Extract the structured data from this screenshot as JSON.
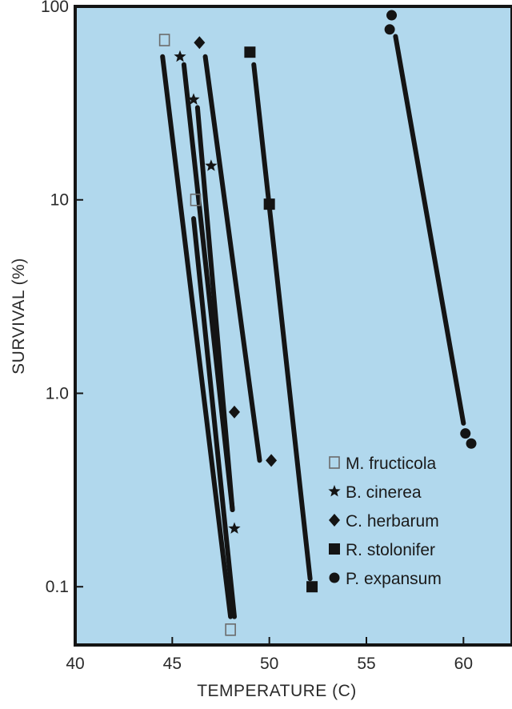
{
  "chart_data": {
    "type": "scatter",
    "xlabel": "TEMPERATURE (C)",
    "ylabel": "SURVIVAL (%)",
    "xlim": [
      40,
      62.5
    ],
    "ylim": [
      0.05,
      100
    ],
    "y_scale": "log",
    "x_ticks": [
      40,
      45,
      50,
      55,
      60
    ],
    "y_ticks": [
      {
        "value": 100,
        "label": "100"
      },
      {
        "value": 10,
        "label": "10"
      },
      {
        "value": 1,
        "label": "1.0"
      },
      {
        "value": 0.1,
        "label": "0.1"
      }
    ],
    "legend_position": "bottom-right",
    "series": [
      {
        "name": "M. fructicola",
        "marker": "open-square",
        "points": [
          [
            44.6,
            67
          ],
          [
            46.2,
            10
          ],
          [
            48,
            0.06
          ]
        ],
        "fit_lines": [
          [
            [
              44.5,
              55
            ],
            [
              48,
              0.07
            ]
          ],
          [
            [
              46.1,
              8
            ],
            [
              48.2,
              0.07
            ]
          ]
        ]
      },
      {
        "name": "B. cinerea",
        "marker": "star",
        "points": [
          [
            45.4,
            55
          ],
          [
            46.1,
            33
          ],
          [
            47,
            15
          ],
          [
            48.2,
            0.2
          ]
        ],
        "fit_lines": [
          [
            [
              45.6,
              50
            ],
            [
              48.1,
              0.25
            ]
          ],
          [
            [
              46.3,
              30
            ],
            [
              48.1,
              0.25
            ]
          ]
        ]
      },
      {
        "name": "C. herbarum",
        "marker": "diamond",
        "points": [
          [
            46.4,
            65
          ],
          [
            48.2,
            0.8
          ],
          [
            50.1,
            0.45
          ]
        ],
        "fit_lines": [
          [
            [
              46.7,
              55
            ],
            [
              49.5,
              0.45
            ]
          ]
        ]
      },
      {
        "name": "R. stolonifer",
        "marker": "filled-square",
        "points": [
          [
            49,
            58
          ],
          [
            50,
            9.5
          ],
          [
            52.2,
            0.1
          ]
        ],
        "fit_lines": [
          [
            [
              49.2,
              50
            ],
            [
              52.1,
              0.11
            ]
          ]
        ]
      },
      {
        "name": "P. expansum",
        "marker": "filled-circle",
        "points": [
          [
            56.3,
            90
          ],
          [
            56.2,
            76
          ],
          [
            60.1,
            0.62
          ],
          [
            60.4,
            0.55
          ]
        ],
        "fit_lines": [
          [
            [
              56.5,
              70
            ],
            [
              60,
              0.7
            ]
          ]
        ]
      }
    ]
  },
  "colors": {
    "plot_background": "#b1d8ed",
    "ink": "#141414",
    "text": "#2a2a2a"
  }
}
